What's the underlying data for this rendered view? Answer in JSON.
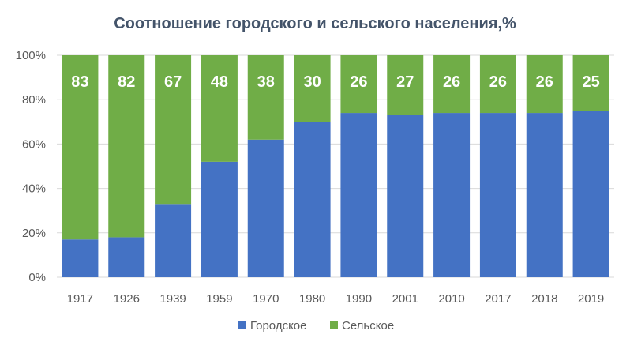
{
  "chart_data": {
    "type": "bar",
    "stacked": true,
    "title": "Соотношение городского и сельского населения,%",
    "categories": [
      "1917",
      "1926",
      "1939",
      "1959",
      "1970",
      "1980",
      "1990",
      "2001",
      "2010",
      "2017",
      "2018",
      "2019"
    ],
    "series": [
      {
        "name": "Городское",
        "color": "#4472c4",
        "values": [
          17,
          18,
          33,
          52,
          62,
          70,
          74,
          73,
          74,
          74,
          74,
          75
        ]
      },
      {
        "name": "Сельское",
        "color": "#70ad47",
        "values": [
          83,
          82,
          67,
          48,
          38,
          30,
          26,
          27,
          26,
          26,
          26,
          25
        ]
      }
    ],
    "data_labels": {
      "series": "Сельское",
      "values": [
        "83",
        "82",
        "67",
        "48",
        "38",
        "30",
        "26",
        "27",
        "26",
        "26",
        "26",
        "25"
      ]
    },
    "yticks": [
      "0%",
      "20%",
      "40%",
      "60%",
      "80%",
      "100%"
    ],
    "ylim": [
      0,
      100
    ],
    "grid": true,
    "legend_position": "bottom"
  }
}
